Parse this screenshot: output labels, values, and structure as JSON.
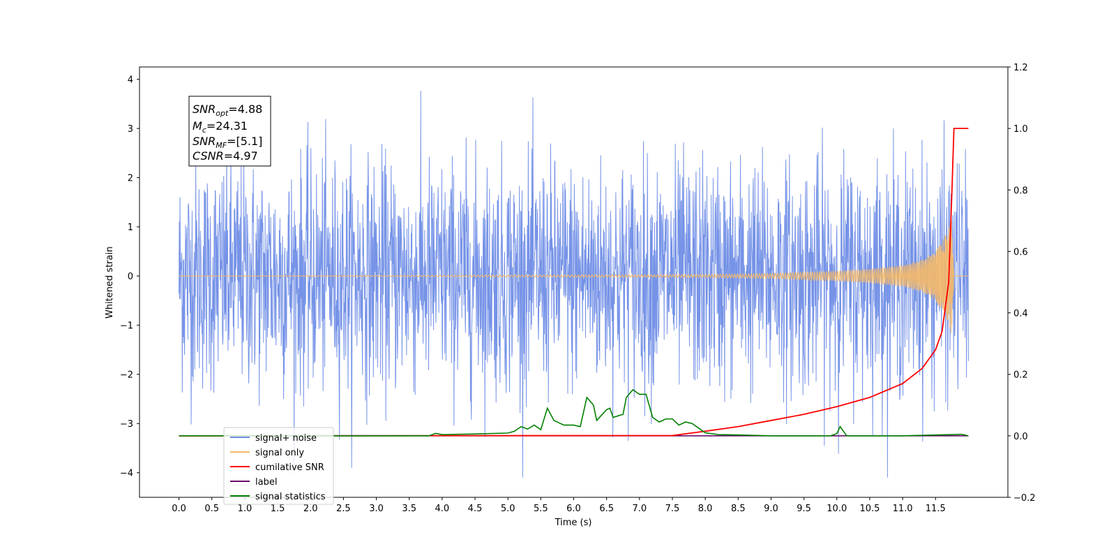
{
  "chart_data": {
    "type": "line",
    "xlabel": "Time (s)",
    "ylabel": "Whitened strain",
    "xlim": [
      -0.6,
      12.6
    ],
    "ylim": [
      -4.5,
      4.25
    ],
    "ylim_right": [
      -0.2,
      1.2
    ],
    "x_ticks": [
      "0.0",
      "0.5",
      "1.0",
      "1.5",
      "2.0",
      "2.5",
      "3.0",
      "3.5",
      "4.0",
      "4.5",
      "5.0",
      "5.5",
      "6.0",
      "6.5",
      "7.0",
      "7.5",
      "8.0",
      "8.5",
      "9.0",
      "9.5",
      "10.0",
      "10.5",
      "11.0",
      "11.5"
    ],
    "y_ticks": [
      "4",
      "3",
      "2",
      "1",
      "0",
      "−1",
      "−2",
      "−3",
      "−4"
    ],
    "y_ticks_right": [
      "1.2",
      "1.0",
      "0.8",
      "0.6",
      "0.4",
      "0.2",
      "0.0",
      "−0.2"
    ],
    "grid": false,
    "legend_position": "lower-left",
    "annotation": {
      "line1_main": "SNR",
      "line1_sub": "opt",
      "line1_rest": "=4.88",
      "line2_main": "M",
      "line2_sub": "c",
      "line2_rest": "=24.31",
      "line3_main": "SNR",
      "line3_sub": "MF",
      "line3_rest": "=[5.1]",
      "line4_main": "CSNR",
      "line4_rest": "=4.97"
    },
    "series": [
      {
        "name": "signal+ noise",
        "axis": "left",
        "color": "#6f8de6",
        "description": "whitened strain noise, approx. ±3 envelope over 0–12 s"
      },
      {
        "name": "signal only",
        "axis": "left",
        "color": "#f5b968",
        "chirp_points": [
          [
            0.0,
            0.0
          ],
          [
            8.0,
            0.03
          ],
          [
            9.0,
            0.05
          ],
          [
            10.0,
            0.1
          ],
          [
            10.5,
            0.14
          ],
          [
            11.0,
            0.22
          ],
          [
            11.3,
            0.33
          ],
          [
            11.5,
            0.5
          ],
          [
            11.6,
            0.7
          ],
          [
            11.7,
            1.0
          ],
          [
            11.75,
            1.2
          ],
          [
            11.78,
            0.0
          ],
          [
            12.0,
            0.0
          ]
        ]
      },
      {
        "name": "cumilative SNR",
        "axis": "right",
        "color": "#ff0000",
        "points": [
          [
            0.0,
            0.0
          ],
          [
            7.5,
            0.001
          ],
          [
            8.0,
            0.015
          ],
          [
            8.5,
            0.03
          ],
          [
            9.0,
            0.05
          ],
          [
            9.5,
            0.07
          ],
          [
            10.0,
            0.095
          ],
          [
            10.5,
            0.125
          ],
          [
            11.0,
            0.17
          ],
          [
            11.3,
            0.22
          ],
          [
            11.5,
            0.28
          ],
          [
            11.6,
            0.34
          ],
          [
            11.7,
            0.5
          ],
          [
            11.75,
            0.8
          ],
          [
            11.78,
            1.0
          ],
          [
            12.0,
            1.0
          ]
        ]
      },
      {
        "name": "label",
        "axis": "right",
        "color": "#6a0d6a",
        "points": [
          [
            0.0,
            0.0
          ],
          [
            12.0,
            0.0
          ]
        ]
      },
      {
        "name": "signal statistics",
        "axis": "right",
        "color": "#008000",
        "points": [
          [
            0.0,
            0.0
          ],
          [
            3.8,
            0.0
          ],
          [
            3.9,
            0.008
          ],
          [
            4.0,
            0.004
          ],
          [
            4.5,
            0.006
          ],
          [
            5.0,
            0.009
          ],
          [
            5.1,
            0.015
          ],
          [
            5.2,
            0.03
          ],
          [
            5.3,
            0.022
          ],
          [
            5.4,
            0.035
          ],
          [
            5.5,
            0.02
          ],
          [
            5.6,
            0.09
          ],
          [
            5.7,
            0.05
          ],
          [
            5.85,
            0.035
          ],
          [
            6.0,
            0.035
          ],
          [
            6.1,
            0.03
          ],
          [
            6.2,
            0.125
          ],
          [
            6.3,
            0.1
          ],
          [
            6.35,
            0.05
          ],
          [
            6.5,
            0.085
          ],
          [
            6.55,
            0.09
          ],
          [
            6.6,
            0.06
          ],
          [
            6.75,
            0.07
          ],
          [
            6.8,
            0.125
          ],
          [
            6.9,
            0.15
          ],
          [
            7.0,
            0.135
          ],
          [
            7.1,
            0.135
          ],
          [
            7.2,
            0.06
          ],
          [
            7.3,
            0.045
          ],
          [
            7.4,
            0.055
          ],
          [
            7.5,
            0.055
          ],
          [
            7.6,
            0.035
          ],
          [
            7.7,
            0.045
          ],
          [
            7.8,
            0.04
          ],
          [
            8.0,
            0.01
          ],
          [
            8.2,
            0.004
          ],
          [
            8.5,
            0.003
          ],
          [
            9.0,
            0.0
          ],
          [
            9.9,
            0.0
          ],
          [
            10.0,
            0.007
          ],
          [
            10.05,
            0.03
          ],
          [
            10.15,
            0.0
          ],
          [
            11.0,
            0.0
          ],
          [
            11.9,
            0.005
          ],
          [
            12.0,
            0.0
          ]
        ]
      }
    ]
  }
}
